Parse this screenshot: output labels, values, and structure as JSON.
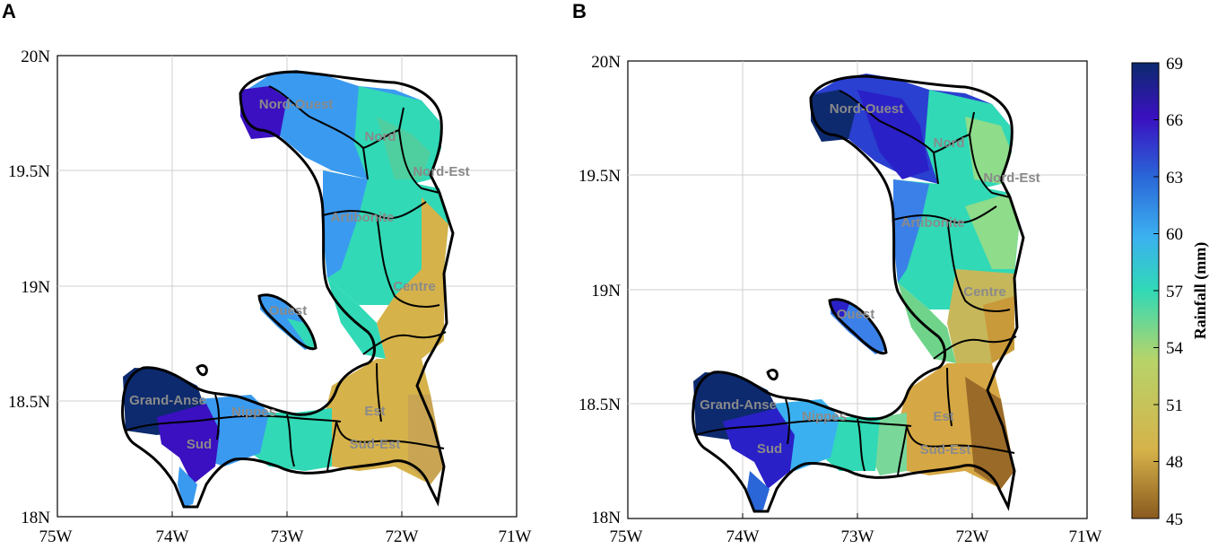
{
  "panels": [
    {
      "letter": "A"
    },
    {
      "letter": "B"
    }
  ],
  "axes": {
    "x_ticks": [
      "75W",
      "74W",
      "73W",
      "72W",
      "71W"
    ],
    "y_ticks": [
      "20N",
      "19.5N",
      "19N",
      "18.5N",
      "18N"
    ],
    "x_range": [
      -75,
      -71
    ],
    "y_range": [
      18,
      20
    ]
  },
  "regions": [
    "Nord-Ouest",
    "Nord",
    "Nord-Est",
    "Artibonite",
    "Centre",
    "Ouest",
    "Grand-Anse",
    "Nippes",
    "Est",
    "Sud",
    "Sud-Est"
  ],
  "colorbar": {
    "label": "Rainfall (mm)",
    "ticks": [
      "69",
      "66",
      "63",
      "60",
      "57",
      "54",
      "51",
      "48",
      "45"
    ],
    "min": 45,
    "max": 69,
    "colors": [
      "#8a5a1e",
      "#d6b24a",
      "#b6d46a",
      "#31d9b6",
      "#3bb0f0",
      "#2a66d8",
      "#3a10c0",
      "#0d2a6e"
    ]
  }
}
